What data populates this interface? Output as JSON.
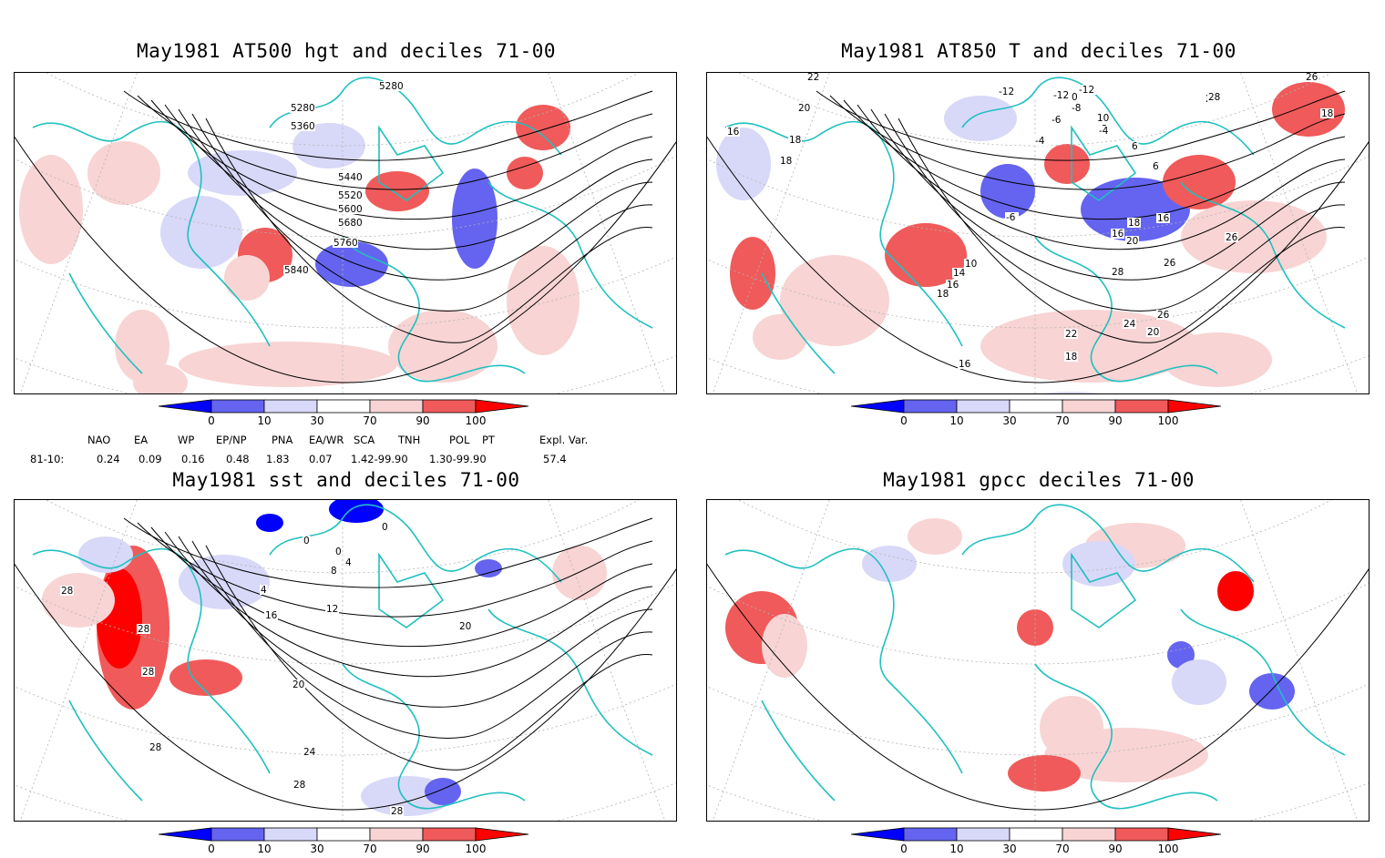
{
  "panels": [
    {
      "id": "hgt500",
      "title": "May1981 AT500 hgt and deciles 71-00",
      "contour_labels": [
        "5280",
        "5280",
        "5360",
        "5440",
        "5520",
        "5600",
        "5680",
        "5760",
        "5840"
      ]
    },
    {
      "id": "t850",
      "title": "May1981 AT850 T and deciles 71-00",
      "contour_labels": [
        "22",
        "20",
        "16",
        "18",
        "18",
        "-12",
        "-12",
        "-12",
        "0",
        "-8",
        "-6",
        "10",
        "2",
        "-4",
        "-4",
        "6",
        "6",
        "-6",
        "28",
        "26",
        "18",
        "28",
        "16",
        "18",
        "20",
        "16",
        "26",
        "26",
        "28",
        "10",
        "14",
        "16",
        "18",
        "26",
        "24",
        "22",
        "20",
        "18",
        "16"
      ]
    },
    {
      "id": "sst",
      "title": "May1981 sst and deciles 71-00",
      "contour_labels": [
        "28",
        "28",
        "28",
        "4",
        "16",
        "12",
        "8",
        "4",
        "0",
        "0",
        "0",
        "20",
        "20",
        "24",
        "28",
        "28",
        "28"
      ]
    },
    {
      "id": "gpcc",
      "title": "May1981 gpcc deciles 71-00",
      "contour_labels": []
    }
  ],
  "colorbar": {
    "ticks": [
      "0",
      "10",
      "30",
      "70",
      "90",
      "100"
    ],
    "colors": [
      "#0000ff",
      "#6464f0",
      "#d8d8f8",
      "#ffffff",
      "#f8d4d4",
      "#f05a5a",
      "#ff0000"
    ]
  },
  "teleconnections": {
    "row_label": "81-10:",
    "headers": [
      "NAO",
      "EA",
      "WP",
      "EP/NP",
      "PNA",
      "EA/WR",
      "SCA",
      "TNH",
      "POL",
      "PT",
      "Expl. Var."
    ],
    "values": [
      "0.24",
      "0.09",
      "0.16",
      "0.48",
      "1.83",
      "0.07",
      "1.42-99.90",
      "1.30-99.90",
      "57.4"
    ]
  },
  "colors": {
    "coast": "#20c0c0",
    "grid": "#b4b4b4",
    "contour": "#000000"
  }
}
